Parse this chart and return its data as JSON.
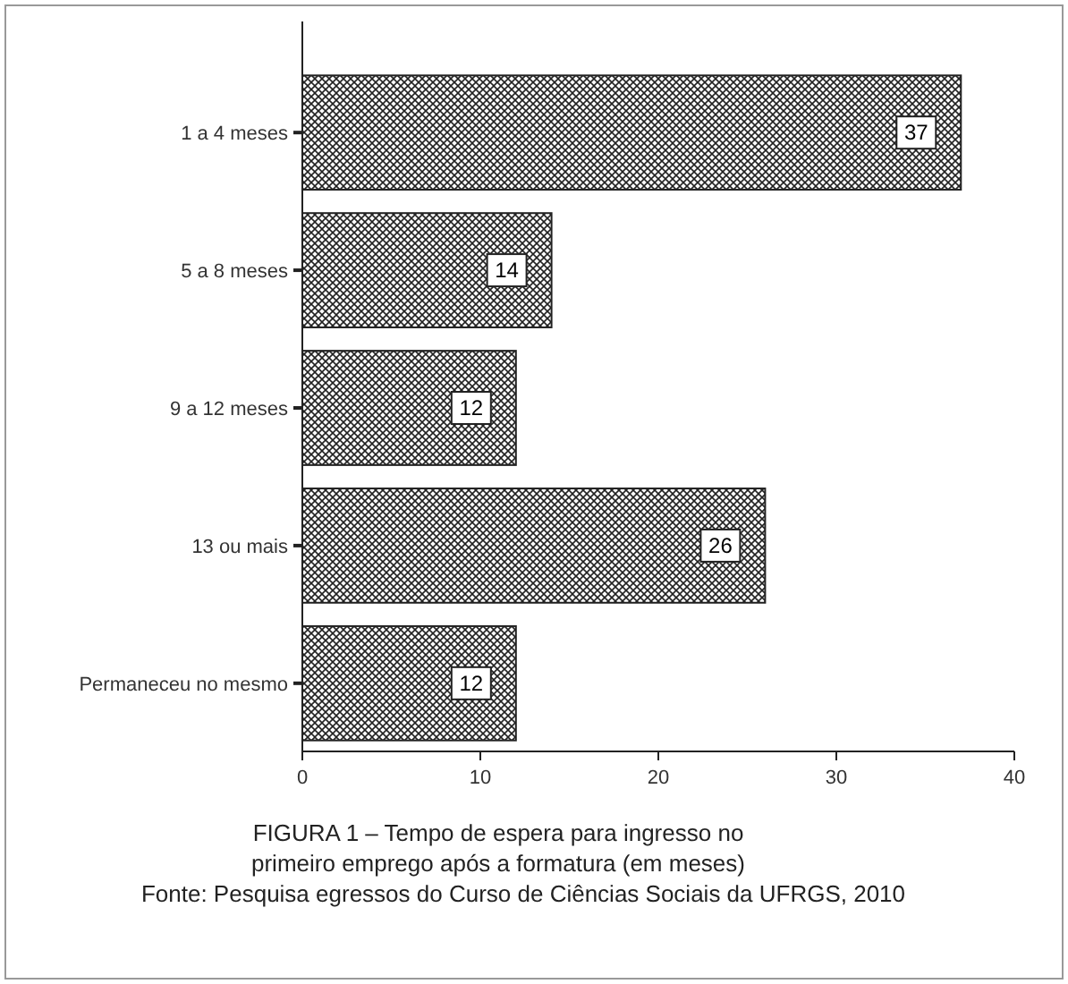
{
  "chart_data": {
    "type": "bar",
    "orientation": "horizontal",
    "title": "FIGURA 1 – Tempo de espera para ingresso no primeiro emprego após a formatura (em meses)",
    "annotations": [
      "Fonte: Pesquisa egressos do Curso de Ciências Sociais da UFRGS, 2010"
    ],
    "categories": [
      "1 a 4 meses",
      "5 a 8 meses",
      "9 a 12 meses",
      "13 ou mais",
      "Permaneceu no mesmo"
    ],
    "values": [
      37,
      14,
      12,
      26,
      12
    ],
    "color": "#222222",
    "xlim": [
      0,
      40
    ],
    "xticks": [
      0,
      10,
      20,
      30,
      40
    ],
    "grid": false,
    "data_labels": true
  }
}
